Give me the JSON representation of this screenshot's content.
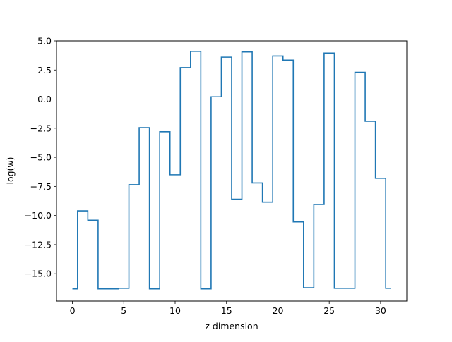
{
  "chart_data": {
    "type": "line",
    "drawstyle": "steps-mid",
    "title": "",
    "xlabel": "z dimension",
    "ylabel": "log(w)",
    "xlim": [
      -1.55,
      32.55
    ],
    "ylim": [
      -17.35,
      5.0
    ],
    "xticks": [
      0,
      5,
      10,
      15,
      20,
      25,
      30
    ],
    "xtick_labels": [
      "0",
      "5",
      "10",
      "15",
      "20",
      "25",
      "30"
    ],
    "yticks": [
      5.0,
      2.5,
      0.0,
      -2.5,
      -5.0,
      -7.5,
      -10.0,
      -12.5,
      -15.0
    ],
    "ytick_labels": [
      "5.0",
      "2.5",
      "0.0",
      "−2.5",
      "−5.0",
      "−7.5",
      "−10.0",
      "−12.5",
      "−15.0"
    ],
    "grid": false,
    "legend": "none",
    "series": [
      {
        "color": "#1f77b4",
        "x": [
          0,
          1,
          2,
          3,
          4,
          5,
          6,
          7,
          8,
          9,
          10,
          11,
          12,
          13,
          14,
          15,
          16,
          17,
          18,
          19,
          20,
          21,
          22,
          23,
          24,
          25,
          26,
          27,
          28,
          29,
          30,
          31
        ],
        "values": [
          -16.3,
          -9.6,
          -10.4,
          -16.3,
          -16.3,
          -16.25,
          -7.35,
          -2.45,
          -16.3,
          -2.8,
          -6.5,
          2.7,
          4.1,
          -16.3,
          0.2,
          3.6,
          -8.6,
          4.05,
          -7.2,
          -8.85,
          3.7,
          3.35,
          -10.55,
          -16.2,
          -9.05,
          3.95,
          -16.25,
          -16.25,
          2.3,
          -1.9,
          -6.8,
          -16.25
        ]
      }
    ]
  }
}
